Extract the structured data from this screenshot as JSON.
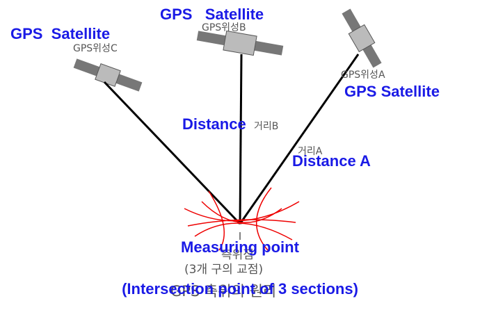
{
  "satellites": [
    {
      "label": "GPS  Satellite",
      "korean_label": "GPS위성C"
    },
    {
      "label": "GPS   Satellite",
      "korean_label": "GPS위성B"
    },
    {
      "label": "GPS Satellite",
      "korean_label": "GPS위성A"
    }
  ],
  "distances": [
    {
      "label": "Distance",
      "korean_label": "거리B"
    },
    {
      "label": "Distance A",
      "korean_label": "거리A"
    }
  ],
  "measuring_point": {
    "label": "Measuring point",
    "korean_label": "측위점",
    "korean_note": "(3개 구의 교점)",
    "note": "(Intersection point of 3 sections)"
  },
  "caption": "GPS 측위의 원리"
}
